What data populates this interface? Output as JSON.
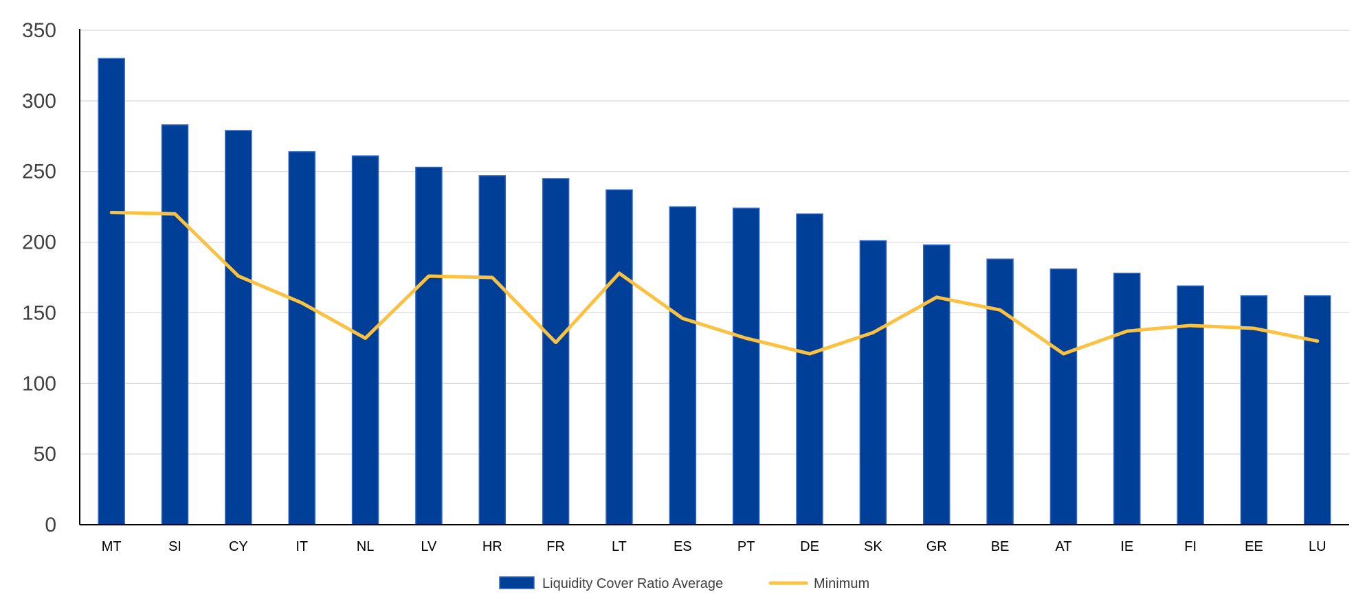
{
  "chart_data": {
    "type": "bar",
    "categories": [
      "MT",
      "SI",
      "CY",
      "IT",
      "NL",
      "LV",
      "HR",
      "FR",
      "LT",
      "ES",
      "PT",
      "DE",
      "SK",
      "GR",
      "BE",
      "AT",
      "IE",
      "FI",
      "EE",
      "LU"
    ],
    "series": [
      {
        "name": "Liquidity Cover Ratio Average",
        "type": "bar",
        "color": "#003F98",
        "values": [
          330,
          283,
          279,
          264,
          261,
          253,
          247,
          245,
          237,
          225,
          224,
          220,
          201,
          198,
          188,
          181,
          178,
          169,
          162,
          162
        ]
      },
      {
        "name": "Minimum",
        "type": "line",
        "color": "#FBC241",
        "values": [
          221,
          220,
          176,
          157,
          132,
          176,
          175,
          129,
          178,
          146,
          132,
          121,
          136,
          161,
          152,
          121,
          137,
          141,
          139,
          130
        ]
      }
    ],
    "title": "",
    "xlabel": "",
    "ylabel": "",
    "ylim": [
      0,
      350
    ],
    "yticks": [
      0,
      50,
      100,
      150,
      200,
      250,
      300,
      350
    ],
    "grid": true,
    "legend": "bottom-center"
  }
}
